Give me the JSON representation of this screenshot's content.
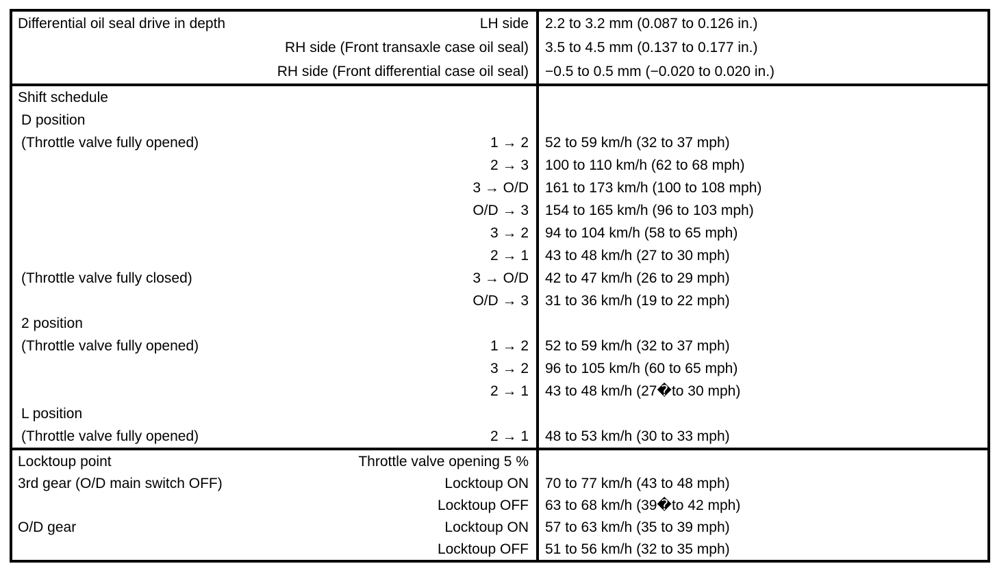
{
  "colors": {
    "background": "#ffffff",
    "text": "#000000",
    "border": "#000000"
  },
  "table": {
    "sections": [
      {
        "name": "differential-oil-seal",
        "rows": [
          {
            "label": "Differential oil seal drive in depth",
            "indent": 0,
            "sub_label": "LH side",
            "value": "2.2 to 3.2 mm (0.087 to 0.126 in.)"
          },
          {
            "label": "",
            "indent": 0,
            "sub_label": "RH side (Front transaxle case oil seal)",
            "value": "3.5 to 4.5 mm (0.137 to 0.177 in.)"
          },
          {
            "label": "",
            "indent": 0,
            "sub_label": "RH side (Front differential case oil seal)",
            "value": "−0.5 to 0.5 mm (−0.020 to 0.020 in.)"
          }
        ]
      },
      {
        "name": "shift-schedule",
        "rows": [
          {
            "label": "Shift schedule",
            "indent": 0,
            "sub_label": "",
            "value": ""
          },
          {
            "label": "D position",
            "indent": 1,
            "sub_label": "",
            "value": ""
          },
          {
            "label": "(Throttle valve fully opened)",
            "indent": 1,
            "sub_label": "1 → 2",
            "value": "52 to 59 km/h (32 to 37 mph)"
          },
          {
            "label": "",
            "indent": 0,
            "sub_label": "2 → 3",
            "value": "100 to 110 km/h (62 to 68 mph)"
          },
          {
            "label": "",
            "indent": 0,
            "sub_label": "3 → O/D",
            "value": "161 to 173 km/h (100 to 108 mph)"
          },
          {
            "label": "",
            "indent": 0,
            "sub_label": "O/D → 3",
            "value": "154 to 165 km/h (96 to 103 mph)"
          },
          {
            "label": "",
            "indent": 0,
            "sub_label": "3 → 2",
            "value": "94 to 104 km/h (58 to 65 mph)"
          },
          {
            "label": "",
            "indent": 0,
            "sub_label": "2 → 1",
            "value": "43 to 48 km/h (27 to 30 mph)"
          },
          {
            "label": "(Throttle valve fully closed)",
            "indent": 1,
            "sub_label": "3 → O/D",
            "value": "42 to 47 km/h (26 to 29 mph)"
          },
          {
            "label": "",
            "indent": 0,
            "sub_label": "O/D → 3",
            "value": "31 to 36 km/h (19 to 22 mph)"
          },
          {
            "label": "2 position",
            "indent": 1,
            "sub_label": "",
            "value": ""
          },
          {
            "label": "(Throttle valve fully opened)",
            "indent": 1,
            "sub_label": "1 → 2",
            "value": "52 to 59 km/h (32 to 37 mph)"
          },
          {
            "label": "",
            "indent": 0,
            "sub_label": "3 → 2",
            "value": "96 to 105 km/h (60 to 65 mph)"
          },
          {
            "label": "",
            "indent": 0,
            "sub_label": "2 → 1",
            "value": "43 to 48 km/h (27�to 30 mph)"
          },
          {
            "label": "L position",
            "indent": 1,
            "sub_label": "",
            "value": ""
          },
          {
            "label": "(Throttle valve fully opened)",
            "indent": 1,
            "sub_label": "2 → 1",
            "value": "48 to 53 km/h (30 to 33 mph)"
          }
        ]
      },
      {
        "name": "locktoup-point",
        "rows": [
          {
            "label": "Locktoup point",
            "indent": 0,
            "sub_label": "Throttle valve opening 5 %",
            "value": ""
          },
          {
            "label": "3rd gear (O/D main switch OFF)",
            "indent": 0,
            "sub_label": "Locktoup ON",
            "value": "70 to 77 km/h (43 to 48 mph)"
          },
          {
            "label": "",
            "indent": 0,
            "sub_label": "Locktoup OFF",
            "value": "63 to 68 km/h (39�to 42 mph)"
          },
          {
            "label": "O/D gear",
            "indent": 0,
            "sub_label": "Locktoup ON",
            "value": "57 to 63 km/h (35 to 39 mph)"
          },
          {
            "label": "",
            "indent": 0,
            "sub_label": "Locktoup OFF",
            "value": "51 to 56 km/h (32 to 35 mph)"
          }
        ]
      }
    ]
  }
}
